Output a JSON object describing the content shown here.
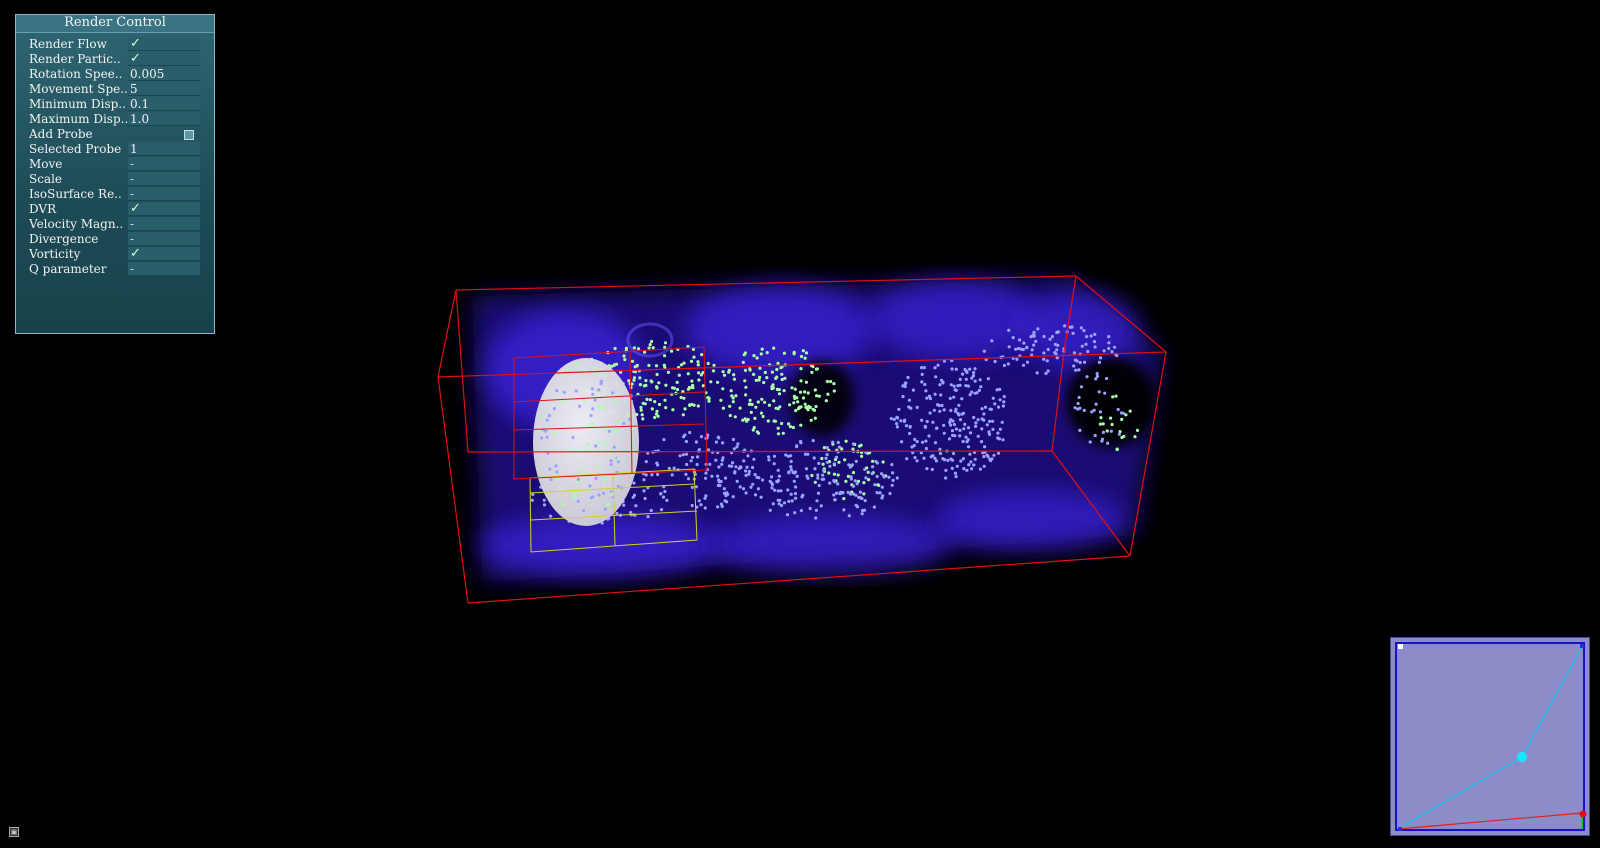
{
  "panel": {
    "title": "Render Control",
    "rows": [
      {
        "label": "Render Flow",
        "value": "✓",
        "kind": "check"
      },
      {
        "label": "Render Partic..",
        "value": "✓",
        "kind": "check"
      },
      {
        "label": "Rotation Spee..",
        "value": "0.005",
        "kind": "text"
      },
      {
        "label": "Movement Spe..",
        "value": "5",
        "kind": "text"
      },
      {
        "label": "Minimum Disp..",
        "value": "0.1",
        "kind": "text"
      },
      {
        "label": "Maximum Disp..",
        "value": "1.0",
        "kind": "text"
      },
      {
        "label": "Add Probe",
        "value": "",
        "kind": "button"
      },
      {
        "label": "Selected Probe",
        "value": "1",
        "kind": "text"
      },
      {
        "label": "Move",
        "value": "-",
        "kind": "dash"
      },
      {
        "label": "Scale",
        "value": "-",
        "kind": "dash"
      },
      {
        "label": "IsoSurface Re..",
        "value": "-",
        "kind": "dash"
      },
      {
        "label": "DVR",
        "value": "✓",
        "kind": "check"
      },
      {
        "label": "Velocity Magn..",
        "value": "-",
        "kind": "dash"
      },
      {
        "label": "Divergence",
        "value": "-",
        "kind": "dash"
      },
      {
        "label": "Vorticity",
        "value": "✓",
        "kind": "check"
      },
      {
        "label": "Q parameter",
        "value": "-",
        "kind": "dash"
      }
    ]
  },
  "colors": {
    "bounding_box": "#e01010",
    "probe_box": "#d8d020",
    "volume": "#3a22d8",
    "particles_a": "#9aa2ff",
    "particles_b": "#a8ffa8",
    "sphere": "#e6e6ee",
    "tf_background": "#8c8cc8",
    "tf_curve": "#19c6f0",
    "tf_control_point": "#19e6ff"
  },
  "icons": {
    "corner": "window-icon"
  }
}
